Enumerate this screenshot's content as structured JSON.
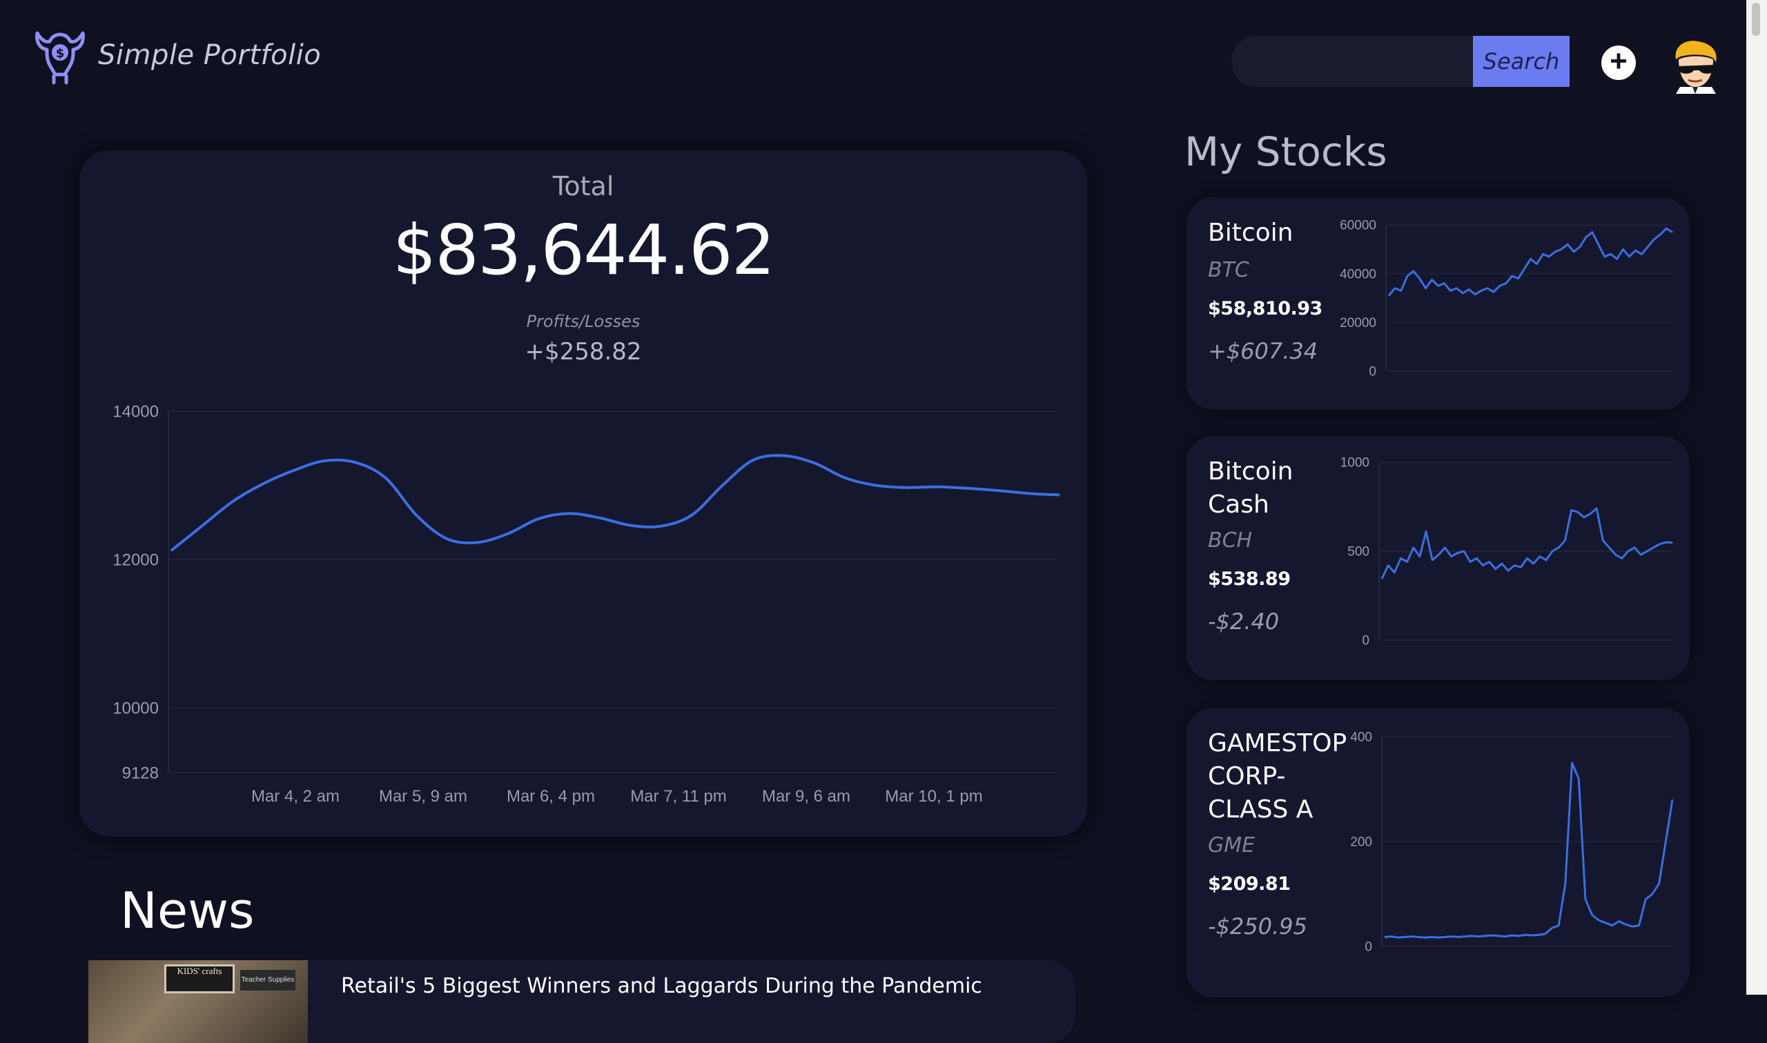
{
  "header": {
    "app_name": "Simple Portfolio",
    "search": {
      "placeholder": "",
      "value": "",
      "button_label": "Search"
    },
    "add_icon": "plus-circle-icon",
    "avatar_icon": "sunglasses-avatar"
  },
  "portfolio": {
    "total_label": "Total",
    "total_value": "$83,644.62",
    "pl_label": "Profits/Losses",
    "pl_value": "+$258.82"
  },
  "chart_data": [
    {
      "type": "line",
      "title": "",
      "yticks": [
        9128,
        10000,
        12000,
        14000
      ],
      "ylim": [
        9128,
        14000
      ],
      "xticks": [
        "Mar 4, 2 am",
        "Mar 5, 9 am",
        "Mar 6, 4 pm",
        "Mar 7, 11 pm",
        "Mar 9, 6 am",
        "Mar 10, 1 pm"
      ],
      "grid": true,
      "series": [
        {
          "color": "#3b6fe0",
          "values": [
            12120,
            12450,
            12780,
            13020,
            13200,
            13330,
            13310,
            13100,
            12600,
            12280,
            12230,
            12350,
            12550,
            12620,
            12560,
            12460,
            12450,
            12600,
            13000,
            13340,
            13400,
            13300,
            13100,
            13000,
            12970,
            12980,
            12960,
            12930,
            12890,
            12870
          ]
        }
      ]
    },
    {
      "type": "line",
      "name": "BTC sparkline",
      "yticks": [
        0,
        20000,
        40000,
        60000
      ],
      "ylim": [
        0,
        60000
      ],
      "series": [
        {
          "color": "#3b6fe0",
          "values": [
            31000,
            34000,
            33000,
            39000,
            41000,
            38000,
            34000,
            37500,
            35000,
            36000,
            33000,
            34000,
            32000,
            33500,
            31500,
            33000,
            34000,
            32500,
            35000,
            36000,
            39000,
            38000,
            42000,
            46000,
            44000,
            48000,
            47000,
            49000,
            50000,
            52000,
            49000,
            51000,
            55000,
            57000,
            52000,
            47000,
            48000,
            46000,
            50000,
            47000,
            49500,
            48000,
            51000,
            54000,
            56000,
            58500,
            57000
          ]
        }
      ]
    },
    {
      "type": "line",
      "name": "BCH sparkline",
      "yticks": [
        0,
        500,
        1000
      ],
      "ylim": [
        0,
        1000
      ],
      "series": [
        {
          "color": "#3b6fe0",
          "values": [
            345,
            420,
            380,
            460,
            440,
            520,
            470,
            610,
            450,
            480,
            520,
            470,
            490,
            500,
            440,
            460,
            420,
            440,
            400,
            430,
            390,
            420,
            410,
            460,
            430,
            470,
            450,
            500,
            520,
            560,
            730,
            720,
            690,
            710,
            740,
            560,
            520,
            480,
            460,
            500,
            520,
            480,
            500,
            520,
            540,
            550,
            548
          ]
        }
      ]
    },
    {
      "type": "line",
      "name": "GME sparkline",
      "yticks": [
        0,
        200,
        400
      ],
      "ylim": [
        0,
        400
      ],
      "series": [
        {
          "color": "#3b6fe0",
          "values": [
            18,
            19,
            17,
            18,
            19,
            18,
            17,
            18,
            17,
            18,
            19,
            18,
            19,
            20,
            19,
            20,
            21,
            20,
            19,
            21,
            20,
            22,
            21,
            22,
            24,
            35,
            40,
            120,
            350,
            320,
            90,
            60,
            50,
            45,
            40,
            48,
            42,
            38,
            40,
            90,
            100,
            120,
            200,
            280
          ]
        }
      ]
    }
  ],
  "my_stocks": {
    "title": "My Stocks",
    "items": [
      {
        "name": "Bitcoin",
        "ticker": "BTC",
        "price": "$58,810.93",
        "change": "+$607.34"
      },
      {
        "name": "Bitcoin Cash",
        "ticker": "BCH",
        "price": "$538.89",
        "change": "-$2.40"
      },
      {
        "name": "GAMESTOP CORP-CLASS A",
        "ticker": "GME",
        "price": "$209.81",
        "change": "-$250.95"
      }
    ]
  },
  "news": {
    "title": "News",
    "items": [
      {
        "headline": "Retail's 5 Biggest Winners and Laggards During the Pandemic",
        "thumb_sign": "KIDS' crafts",
        "thumb_sign2": "Teacher Supplies"
      }
    ]
  }
}
